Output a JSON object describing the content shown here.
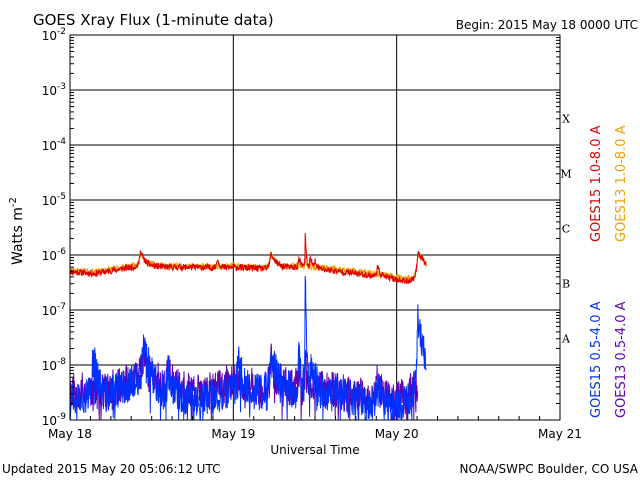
{
  "chart_data": {
    "type": "line",
    "title": "GOES Xray Flux (1-minute data)",
    "begin_label": "Begin:  2015 May 18 0000 UTC",
    "ylabel_main": "Watts m",
    "ylabel_sup": "-2",
    "xlabel": "Universal Time",
    "y_scale": "log",
    "ylim": [
      1e-09,
      0.01
    ],
    "y_ticks": [
      {
        "base": "10",
        "exp": "-2"
      },
      {
        "base": "10",
        "exp": "-3"
      },
      {
        "base": "10",
        "exp": "-4"
      },
      {
        "base": "10",
        "exp": "-5"
      },
      {
        "base": "10",
        "exp": "-6"
      },
      {
        "base": "10",
        "exp": "-7"
      },
      {
        "base": "10",
        "exp": "-8"
      },
      {
        "base": "10",
        "exp": "-9"
      }
    ],
    "x_ticks": [
      "May 18",
      "May 19",
      "May 20",
      "May 21"
    ],
    "xlim_days": [
      0,
      3
    ],
    "flare_classes": [
      {
        "label": "X",
        "level": 0.0001
      },
      {
        "label": "M",
        "level": 1e-05
      },
      {
        "label": "C",
        "level": 1e-06
      },
      {
        "label": "B",
        "level": 1e-07
      },
      {
        "label": "A",
        "level": 1e-08
      }
    ],
    "grid": true,
    "legend_placement": "right",
    "series": [
      {
        "name": "GOES15 1.0-8.0 A",
        "color": "#e00000",
        "band": "long",
        "seed": 11,
        "anchors": [
          [
            0,
            5e-07
          ],
          [
            0.15,
            4.6e-07
          ],
          [
            0.3,
            5.5e-07
          ],
          [
            0.45,
            6.5e-07
          ],
          [
            0.6,
            6e-07
          ],
          [
            0.75,
            6e-07
          ],
          [
            0.95,
            5.8e-07
          ],
          [
            1.0,
            6e-07
          ],
          [
            1.2,
            5.6e-07
          ],
          [
            1.4,
            6e-07
          ],
          [
            1.55,
            5.5e-07
          ],
          [
            1.7,
            4.8e-07
          ],
          [
            1.85,
            4.2e-07
          ],
          [
            2.0,
            3.6e-07
          ],
          [
            2.05,
            3.3e-07
          ],
          [
            2.1,
            3.6e-07
          ],
          [
            2.13,
            5e-07
          ],
          [
            2.16,
            7e-07
          ],
          [
            2.18,
            6e-07
          ]
        ],
        "spikes": [
          [
            0.43,
            0.02,
            6e-07
          ],
          [
            0.9,
            0.015,
            3e-07
          ],
          [
            1.23,
            0.03,
            5e-07
          ],
          [
            1.4,
            0.015,
            2.5e-07
          ],
          [
            1.44,
            0.005,
            1.8e-06
          ],
          [
            1.47,
            0.012,
            4e-07
          ],
          [
            1.5,
            0.01,
            2e-07
          ],
          [
            1.88,
            0.02,
            2e-07
          ],
          [
            2.13,
            0.02,
            7e-07
          ]
        ]
      },
      {
        "name": "GOES13 1.0-8.0 A",
        "color": "#f0a000",
        "band": "long",
        "seed": 23,
        "anchors": [
          [
            0,
            5.3e-07
          ],
          [
            0.15,
            4.9e-07
          ],
          [
            0.3,
            5.8e-07
          ],
          [
            0.45,
            6.8e-07
          ],
          [
            0.6,
            6.3e-07
          ],
          [
            0.75,
            6.3e-07
          ],
          [
            0.95,
            6.1e-07
          ],
          [
            1.0,
            6.3e-07
          ],
          [
            1.2,
            5.9e-07
          ],
          [
            1.4,
            6.3e-07
          ],
          [
            1.55,
            5.9e-07
          ],
          [
            1.7,
            5.2e-07
          ],
          [
            1.85,
            4.6e-07
          ],
          [
            2.0,
            4e-07
          ],
          [
            2.05,
            3.7e-07
          ],
          [
            2.1,
            3.9e-07
          ],
          [
            2.13,
            5.2e-07
          ],
          [
            2.16,
            7.2e-07
          ],
          [
            2.18,
            6.3e-07
          ]
        ],
        "spikes": [
          [
            0.43,
            0.02,
            5.5e-07
          ],
          [
            1.23,
            0.03,
            4.5e-07
          ],
          [
            1.44,
            0.005,
            4e-07
          ],
          [
            2.13,
            0.02,
            6e-07
          ]
        ]
      },
      {
        "name": "GOES15 0.5-4.0 A",
        "color": "#0030ff",
        "band": "short",
        "seed": 37,
        "anchors": [
          [
            0,
            3e-09
          ],
          [
            0.2,
            2.5e-09
          ],
          [
            0.4,
            5e-09
          ],
          [
            0.6,
            3e-09
          ],
          [
            0.8,
            2e-09
          ],
          [
            1.0,
            4e-09
          ],
          [
            1.2,
            3e-09
          ],
          [
            1.4,
            3.5e-09
          ],
          [
            1.6,
            3e-09
          ],
          [
            1.8,
            2e-09
          ],
          [
            2.0,
            1.8e-09
          ],
          [
            2.1,
            3e-09
          ],
          [
            2.16,
            8e-09
          ],
          [
            2.18,
            5e-09
          ]
        ],
        "spikes": [
          [
            0.14,
            0.02,
            1.5e-08
          ],
          [
            0.45,
            0.03,
            1.8e-08
          ],
          [
            0.6,
            0.02,
            6e-09
          ],
          [
            1.03,
            0.02,
            8e-09
          ],
          [
            1.23,
            0.03,
            1.2e-08
          ],
          [
            1.4,
            0.015,
            1e-08
          ],
          [
            1.44,
            0.004,
            3e-07
          ],
          [
            1.47,
            0.012,
            1e-08
          ],
          [
            1.5,
            0.01,
            6e-09
          ],
          [
            1.88,
            0.02,
            4e-09
          ],
          [
            2.13,
            0.02,
            6e-08
          ]
        ]
      },
      {
        "name": "GOES13 0.5-4.0 A",
        "color": "#6000b0",
        "band": "short",
        "seed": 53,
        "anchors": [
          [
            0,
            3.5e-09
          ],
          [
            0.2,
            3e-09
          ],
          [
            0.4,
            6e-09
          ],
          [
            0.6,
            4e-09
          ],
          [
            0.8,
            3e-09
          ],
          [
            1.0,
            5e-09
          ],
          [
            1.2,
            3.5e-09
          ],
          [
            1.4,
            4e-09
          ],
          [
            1.6,
            3.5e-09
          ],
          [
            1.8,
            2.5e-09
          ],
          [
            2.0,
            2.2e-09
          ],
          [
            2.1,
            3.5e-09
          ],
          [
            2.13,
            5e-09
          ]
        ],
        "spikes": [
          [
            0.45,
            0.03,
            1.4e-08
          ],
          [
            0.6,
            0.02,
            5e-09
          ],
          [
            1.23,
            0.03,
            8e-09
          ],
          [
            1.44,
            0.004,
            1.2e-08
          ],
          [
            1.88,
            0.02,
            3e-09
          ]
        ]
      }
    ]
  },
  "footer": {
    "updated": "Updated 2015 May 20 05:06:12 UTC",
    "credit": "NOAA/SWPC Boulder, CO USA"
  }
}
